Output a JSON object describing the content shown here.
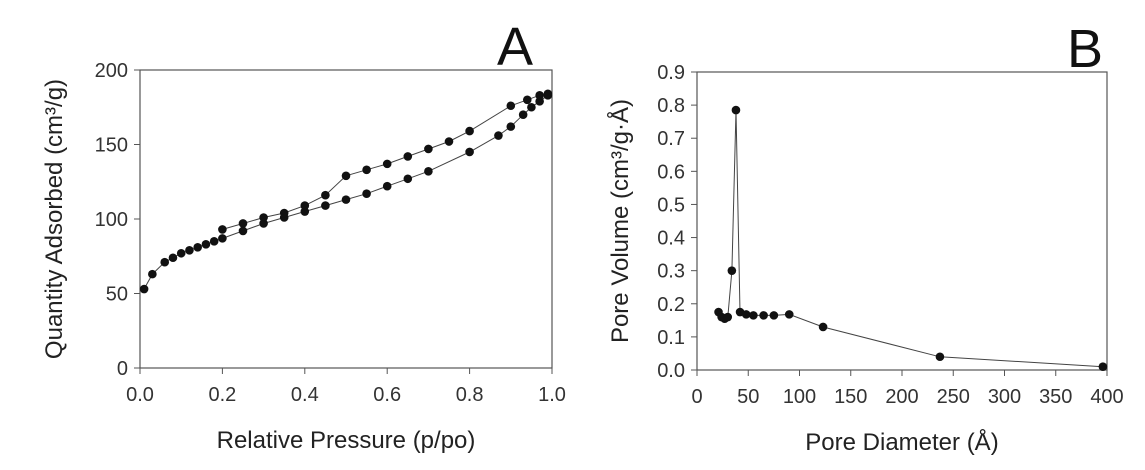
{
  "chart_data": [
    {
      "type": "line",
      "panel_label": "A",
      "xlabel": "Relative Pressure (p/po)",
      "ylabel": "Quantity Adsorbed (cm³/g)",
      "xlim": [
        0.0,
        1.0
      ],
      "ylim": [
        0,
        200
      ],
      "xticks": [
        "0.0",
        "0.2",
        "0.4",
        "0.6",
        "0.8",
        "1.0"
      ],
      "yticks": [
        "0",
        "50",
        "100",
        "150",
        "200"
      ],
      "grid": false,
      "marker_color": "#111111",
      "series": [
        {
          "x": [
            0.01,
            0.03,
            0.06,
            0.08,
            0.1,
            0.12,
            0.14,
            0.16,
            0.18,
            0.2,
            0.25,
            0.3,
            0.35,
            0.4,
            0.45,
            0.5,
            0.55,
            0.6,
            0.65,
            0.7,
            0.8,
            0.87,
            0.9,
            0.93,
            0.95,
            0.97,
            0.99
          ],
          "y": [
            53,
            63,
            71,
            74,
            77,
            79,
            81,
            83,
            85,
            87,
            92,
            97,
            101,
            105,
            109,
            113,
            117,
            122,
            127,
            132,
            145,
            156,
            162,
            170,
            175,
            179,
            183
          ]
        },
        {
          "x": [
            0.99,
            0.97,
            0.94,
            0.9,
            0.8,
            0.75,
            0.7,
            0.65,
            0.6,
            0.55,
            0.5,
            0.45,
            0.4,
            0.35,
            0.3,
            0.25,
            0.2
          ],
          "y": [
            184,
            183,
            180,
            176,
            159,
            152,
            147,
            142,
            137,
            133,
            129,
            116,
            109,
            104,
            101,
            97,
            93
          ]
        }
      ]
    },
    {
      "type": "line",
      "panel_label": "B",
      "xlabel": "Pore Diameter (Å)",
      "ylabel": "Pore Volume (cm³/g·Å)",
      "xlim": [
        0,
        400
      ],
      "ylim": [
        0.0,
        0.9
      ],
      "xticks": [
        "0",
        "50",
        "100",
        "150",
        "200",
        "250",
        "300",
        "350",
        "400"
      ],
      "yticks": [
        "0.0",
        "0.1",
        "0.2",
        "0.3",
        "0.4",
        "0.5",
        "0.6",
        "0.7",
        "0.8",
        "0.9"
      ],
      "grid": false,
      "marker_color": "#111111",
      "series": [
        {
          "x": [
            21,
            24,
            27,
            30,
            34,
            38,
            42,
            48,
            55,
            65,
            75,
            90,
            123,
            237,
            396
          ],
          "y": [
            0.175,
            0.16,
            0.155,
            0.16,
            0.3,
            0.785,
            0.175,
            0.168,
            0.165,
            0.165,
            0.165,
            0.168,
            0.13,
            0.04,
            0.01
          ]
        }
      ]
    }
  ]
}
